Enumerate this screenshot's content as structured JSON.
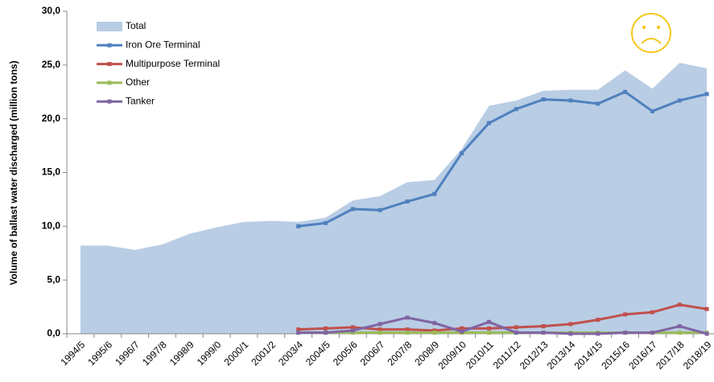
{
  "chart_data": {
    "type": "line",
    "y_label": "Volume of ballast  water discharged (million tons)",
    "categories": [
      "1994/5",
      "1995/6",
      "1996/7",
      "1997/8",
      "1998/9",
      "1999/0",
      "2000/1",
      "2001/2",
      "2003/4",
      "2004/5",
      "2005/6",
      "2006/7",
      "2007/8",
      "2008/9",
      "2009/10",
      "2010/11",
      "2011/12",
      "2012/13",
      "2013/14",
      "2014/15",
      "2015/16",
      "2016/17",
      "2017/18",
      "2018/19"
    ],
    "series": [
      {
        "name": "Total",
        "type": "area",
        "color": "#b9cde5",
        "values": [
          8.2,
          8.2,
          7.8,
          8.3,
          9.3,
          9.9,
          10.4,
          10.5,
          10.4,
          10.8,
          12.4,
          12.8,
          14.1,
          14.3,
          17.2,
          21.2,
          21.7,
          22.6,
          22.7,
          22.7,
          24.5,
          22.8,
          25.2,
          24.7
        ]
      },
      {
        "name": "Iron Ore Terminal",
        "color": "#4f81bd",
        "values": [
          null,
          null,
          null,
          null,
          null,
          null,
          null,
          null,
          10.0,
          10.3,
          11.6,
          11.5,
          12.3,
          13.0,
          16.8,
          19.6,
          20.9,
          21.8,
          21.7,
          21.4,
          22.5,
          20.7,
          21.7,
          22.3
        ]
      },
      {
        "name": "Multipurpose Terminal",
        "color": "#c0504d",
        "values": [
          null,
          null,
          null,
          null,
          null,
          null,
          null,
          null,
          0.4,
          0.5,
          0.6,
          0.4,
          0.4,
          0.3,
          0.5,
          0.5,
          0.6,
          0.7,
          0.9,
          1.3,
          1.8,
          2.0,
          2.7,
          2.3
        ]
      },
      {
        "name": "Other",
        "color": "#9bbb59",
        "values": [
          null,
          null,
          null,
          null,
          null,
          null,
          null,
          null,
          0.1,
          0.1,
          0.1,
          0.1,
          0.1,
          0.1,
          0.1,
          0.1,
          0.1,
          0.1,
          0.1,
          0.1,
          0.1,
          0.1,
          0.1,
          0.1
        ]
      },
      {
        "name": "Tanker",
        "color": "#8064a2",
        "values": [
          null,
          null,
          null,
          null,
          null,
          null,
          null,
          null,
          0.1,
          0.1,
          0.3,
          0.9,
          1.5,
          1.0,
          0.2,
          1.1,
          0.1,
          0.1,
          0.0,
          0.0,
          0.1,
          0.1,
          0.7,
          0.0
        ]
      }
    ],
    "ylim": [
      0,
      30
    ],
    "yticks": [
      {
        "value": 0,
        "label": "0,0"
      },
      {
        "value": 5,
        "label": "5,0"
      },
      {
        "value": 10,
        "label": "10,0"
      },
      {
        "value": 15,
        "label": "15,0"
      },
      {
        "value": 20,
        "label": "20,0"
      },
      {
        "value": 25,
        "label": "25,0"
      },
      {
        "value": 30,
        "label": "30,0"
      }
    ],
    "legend": "upper left"
  }
}
